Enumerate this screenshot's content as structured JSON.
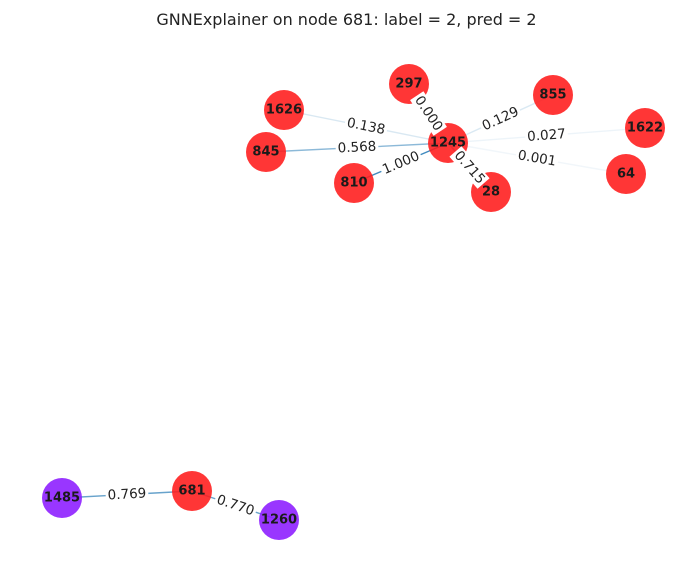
{
  "title": "GNNExplainer on node 681: label = 2, pred = 2",
  "colors": {
    "red": "#ff1a1a",
    "purple": "#8b1aff",
    "edge": "#1f77b4"
  },
  "nodes": [
    {
      "id": "297",
      "color": "red"
    },
    {
      "id": "855",
      "color": "red"
    },
    {
      "id": "1626",
      "color": "red"
    },
    {
      "id": "1245",
      "color": "red"
    },
    {
      "id": "1622",
      "color": "red"
    },
    {
      "id": "845",
      "color": "red"
    },
    {
      "id": "810",
      "color": "red"
    },
    {
      "id": "28",
      "color": "red"
    },
    {
      "id": "64",
      "color": "red"
    },
    {
      "id": "681",
      "color": "red"
    },
    {
      "id": "1485",
      "color": "purple"
    },
    {
      "id": "1260",
      "color": "purple"
    }
  ],
  "edges": [
    {
      "source": "1245",
      "target": "297",
      "label": "0.000",
      "weight": 0.0
    },
    {
      "source": "1245",
      "target": "855",
      "label": "0.129",
      "weight": 0.129
    },
    {
      "source": "1245",
      "target": "1626",
      "label": "0.138",
      "weight": 0.138
    },
    {
      "source": "1245",
      "target": "1622",
      "label": "0.027",
      "weight": 0.027
    },
    {
      "source": "1245",
      "target": "845",
      "label": "0.568",
      "weight": 0.568
    },
    {
      "source": "1245",
      "target": "810",
      "label": "1.000",
      "weight": 1.0
    },
    {
      "source": "1245",
      "target": "28",
      "label": "0.715",
      "weight": 0.715
    },
    {
      "source": "1245",
      "target": "64",
      "label": "0.001",
      "weight": 0.001
    },
    {
      "source": "681",
      "target": "1485",
      "label": "0.769",
      "weight": 0.769
    },
    {
      "source": "681",
      "target": "1260",
      "label": "0.770",
      "weight": 0.77
    }
  ]
}
